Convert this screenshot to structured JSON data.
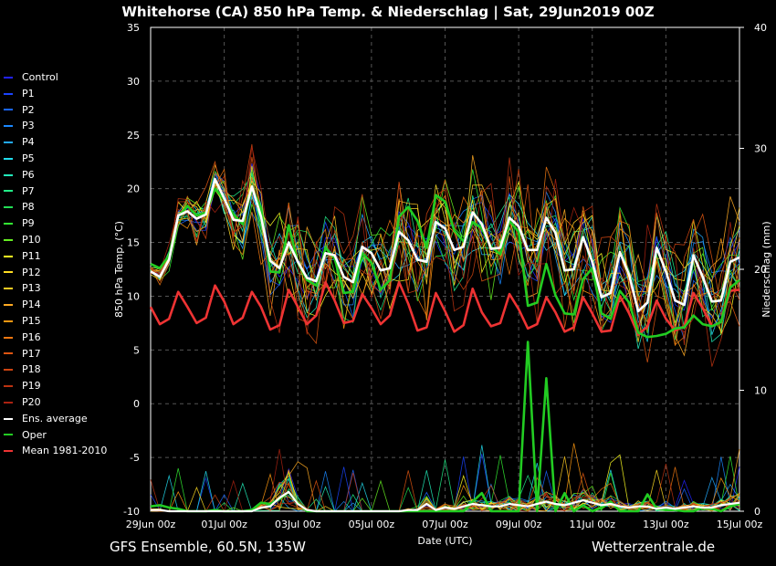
{
  "title": "Whitehorse  (CA)  850 hPa Temp. & Niederschlag | Sat, 29Jun2019 00Z",
  "footer_left": "GFS Ensemble, 60.5N, 135W",
  "footer_right": "Wetterzentrale.de",
  "legend": [
    {
      "label": "Control",
      "color": "#2222ff"
    },
    {
      "label": "P1",
      "color": "#1a44ff"
    },
    {
      "label": "P2",
      "color": "#1a66ff"
    },
    {
      "label": "P3",
      "color": "#1a88ff"
    },
    {
      "label": "P4",
      "color": "#22aaff"
    },
    {
      "label": "P5",
      "color": "#22ddee"
    },
    {
      "label": "P6",
      "color": "#22eebb"
    },
    {
      "label": "P7",
      "color": "#22ee88"
    },
    {
      "label": "P8",
      "color": "#22dd55"
    },
    {
      "label": "P9",
      "color": "#33ee33"
    },
    {
      "label": "P10",
      "color": "#66ee22"
    },
    {
      "label": "P11",
      "color": "#ffff22"
    },
    {
      "label": "P12",
      "color": "#ffdd22"
    },
    {
      "label": "P13",
      "color": "#ffcc22"
    },
    {
      "label": "P14",
      "color": "#ffaa22"
    },
    {
      "label": "P15",
      "color": "#ff9911"
    },
    {
      "label": "P16",
      "color": "#ee7711"
    },
    {
      "label": "P17",
      "color": "#dd5511"
    },
    {
      "label": "P18",
      "color": "#cc4411"
    },
    {
      "label": "P19",
      "color": "#bb3311"
    },
    {
      "label": "P20",
      "color": "#aa2211"
    },
    {
      "label": "Ens. average",
      "color": "#ffffff"
    },
    {
      "label": "Oper",
      "color": "#22cc22"
    },
    {
      "label": "Mean 1981-2010",
      "color": "#ee3333"
    }
  ],
  "chart_data": {
    "type": "line",
    "xlabel": "Date (UTC)",
    "ylabel": "850 hPa Temp. (°C)",
    "y2label": "Niederschlag (mm)",
    "ylim": [
      -10,
      35
    ],
    "y2lim": [
      0,
      40
    ],
    "yticks": [
      -10,
      -5,
      0,
      5,
      10,
      15,
      20,
      25,
      30,
      35
    ],
    "y2ticks": [
      0,
      10,
      20,
      30,
      40
    ],
    "xlim": [
      0,
      64
    ],
    "xticks": [
      {
        "x": 0,
        "label": "29Jun 00z"
      },
      {
        "x": 8,
        "label": "01Jul 00z"
      },
      {
        "x": 16,
        "label": "03Jul 00z"
      },
      {
        "x": 24,
        "label": "05Jul 00z"
      },
      {
        "x": 32,
        "label": "07Jul 00z"
      },
      {
        "x": 40,
        "label": "09Jul 00z"
      },
      {
        "x": 48,
        "label": "11Jul 00z"
      },
      {
        "x": 56,
        "label": "13Jul 00z"
      },
      {
        "x": 64,
        "label": "15Jul 00z"
      }
    ],
    "grid": true,
    "x_step_hours": 6,
    "ens_average": [
      12.3,
      11.8,
      13.4,
      17.5,
      17.9,
      17.2,
      17.6,
      20.9,
      19.1,
      17.1,
      17.0,
      20.2,
      17.4,
      13.3,
      12.6,
      15.0,
      13.2,
      11.7,
      11.4,
      14.0,
      13.8,
      11.8,
      11.3,
      14.6,
      14.0,
      12.4,
      12.6,
      16.0,
      15.2,
      13.4,
      13.2,
      16.9,
      16.3,
      14.3,
      14.6,
      17.8,
      16.7,
      14.4,
      14.5,
      17.3,
      16.5,
      14.3,
      14.3,
      17.3,
      15.9,
      12.4,
      12.5,
      15.5,
      13.2,
      9.9,
      10.3,
      14.1,
      12.0,
      8.6,
      9.4,
      14.5,
      12.3,
      9.6,
      9.2,
      13.8,
      11.8,
      9.5,
      9.6,
      13.2,
      13.6
    ],
    "oper": [
      13.0,
      12.6,
      13.8,
      17.4,
      18.4,
      17.5,
      17.8,
      20.0,
      19.0,
      17.6,
      16.7,
      20.0,
      18.2,
      12.3,
      12.2,
      16.6,
      13.1,
      11.5,
      11.0,
      14.5,
      13.5,
      10.3,
      10.4,
      14.0,
      13.1,
      10.6,
      11.5,
      17.4,
      18.3,
      17.0,
      14.5,
      19.4,
      18.8,
      16.1,
      15.1,
      16.9,
      16.3,
      14.6,
      13.9,
      17.0,
      16.0,
      9.1,
      9.4,
      13.0,
      10.1,
      8.4,
      8.3,
      11.6,
      12.6,
      8.4,
      7.9,
      10.5,
      9.4,
      6.6,
      6.2,
      6.3,
      6.5,
      7.0,
      7.1,
      8.2,
      7.4,
      7.2,
      7.6,
      10.8,
      11.5
    ],
    "climate_mean": [
      9.0,
      7.4,
      7.9,
      10.4,
      9.0,
      7.5,
      8.0,
      11.0,
      9.5,
      7.4,
      8.0,
      10.4,
      9.0,
      6.9,
      7.3,
      10.6,
      9.0,
      7.4,
      8.2,
      11.3,
      9.6,
      7.5,
      7.7,
      10.2,
      8.9,
      7.4,
      8.2,
      11.3,
      9.3,
      6.8,
      7.1,
      10.3,
      8.6,
      6.7,
      7.3,
      10.7,
      8.5,
      7.2,
      7.5,
      10.2,
      8.8,
      7.0,
      7.4,
      9.9,
      8.5,
      6.7,
      7.1,
      9.9,
      8.4,
      6.7,
      6.8,
      10.0,
      8.4,
      6.4,
      7.2,
      9.6,
      7.9,
      6.8,
      7.2,
      10.3,
      8.9,
      7.2,
      7.6,
      10.5,
      10.6
    ],
    "oper_precip": [
      0.4,
      0.5,
      0.3,
      0.2,
      0,
      0,
      0,
      0.1,
      0,
      0,
      0,
      0.1,
      0.7,
      0.6,
      1.0,
      1.6,
      0.7,
      0,
      0,
      0,
      0,
      0,
      0,
      0,
      0,
      0,
      0,
      0,
      0,
      0,
      0,
      0,
      0,
      0,
      0,
      0.8,
      1.5,
      0,
      0,
      0,
      0,
      14,
      0,
      11,
      0,
      1.5,
      0,
      0.5,
      0,
      0.3,
      0.8,
      0,
      0,
      0,
      1.4,
      0.2,
      0.1,
      0.1,
      0,
      0,
      0.3,
      0.2,
      0,
      0.4,
      0.6
    ],
    "avg_precip": [
      0.1,
      0.1,
      0,
      0,
      0,
      0,
      0,
      0,
      0,
      0,
      0,
      0,
      0.3,
      0.4,
      1.1,
      1.6,
      0.6,
      0.1,
      0,
      0,
      0,
      0,
      0,
      0,
      0,
      0,
      0,
      0,
      0.1,
      0.1,
      0.6,
      0.1,
      0.3,
      0.2,
      0.4,
      0.6,
      0.5,
      0.4,
      0.4,
      0.6,
      0.5,
      0.4,
      0.6,
      0.8,
      0.6,
      0.5,
      0.7,
      0.9,
      0.7,
      0.5,
      0.6,
      0.4,
      0.3,
      0.4,
      0.4,
      0.2,
      0.3,
      0.2,
      0.3,
      0.4,
      0.3,
      0.3,
      0.5,
      0.6,
      0.7
    ],
    "members_note": "Members Control, P1-P20 shown as thin lines around the ensemble average"
  }
}
